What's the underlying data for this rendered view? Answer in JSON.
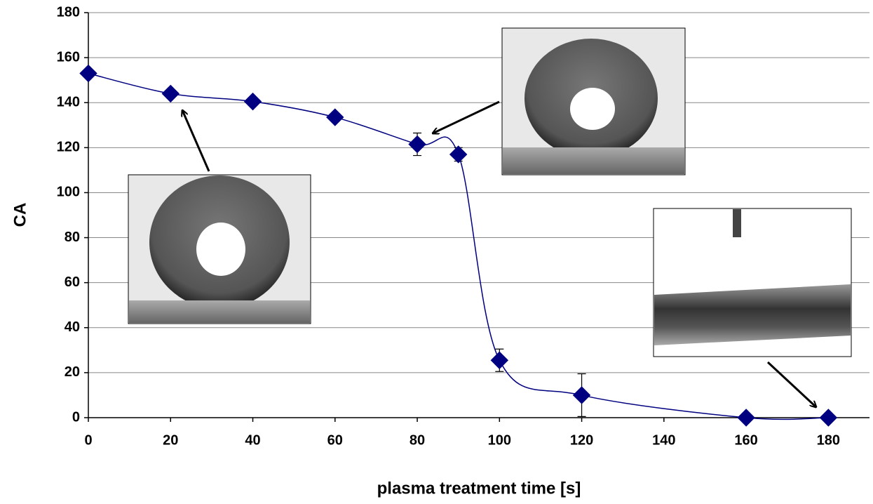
{
  "chart_data": {
    "type": "line",
    "xlabel": "plasma treatment time [s]",
    "ylabel": "CA",
    "x": [
      0,
      20,
      40,
      60,
      80,
      90,
      100,
      120,
      160,
      180
    ],
    "series": [
      {
        "color": "#000080",
        "values": [
          153,
          144,
          140.5,
          133.5,
          121.5,
          117,
          25.5,
          10,
          0,
          0
        ],
        "errors": [
          0,
          0,
          0,
          0,
          5,
          3,
          5,
          9.5,
          0,
          0
        ]
      }
    ],
    "xlim": [
      0,
      190
    ],
    "xticks": [
      0,
      20,
      40,
      60,
      80,
      100,
      120,
      140,
      160,
      180
    ],
    "ylim": [
      0,
      180
    ],
    "yticks": [
      0,
      20,
      40,
      60,
      80,
      100,
      120,
      140,
      160,
      180
    ],
    "grid": true,
    "smooth": true
  }
}
